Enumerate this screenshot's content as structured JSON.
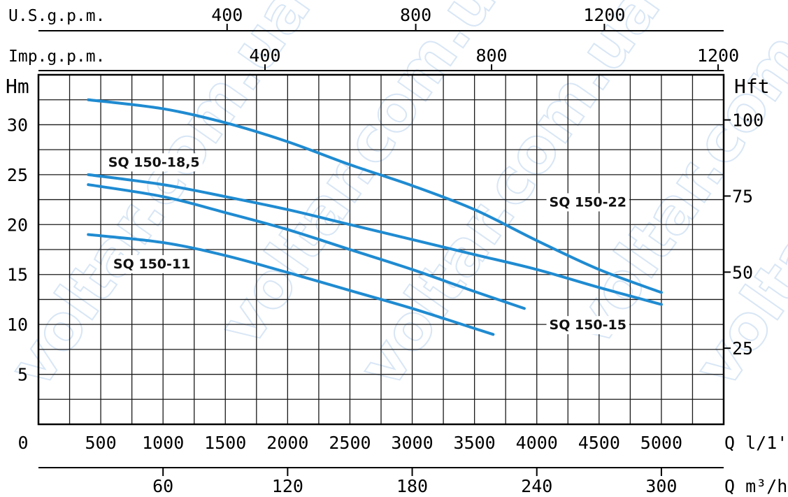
{
  "chart_data": {
    "type": "line",
    "x_unit_main": "Q l/1'",
    "x_unit_m3h": "Q m³/h",
    "x_unit_usgpm": "U.S.g.p.m.",
    "x_unit_impgpm": "Imp.g.p.m.",
    "y_label_left": "Hm",
    "y_label_right": "Hft",
    "xlim": [
      0,
      5500
    ],
    "ylim": [
      0,
      35
    ],
    "grid": true,
    "x_ticks": [
      0,
      500,
      1000,
      1500,
      2000,
      2500,
      3000,
      3500,
      4000,
      4500,
      5000
    ],
    "x_tick_labels": [
      "0",
      "500",
      "1000",
      "1500",
      "2000",
      "2500",
      "3000",
      "3500",
      "4000",
      "4500",
      "5000"
    ],
    "y_ticks": [
      5,
      10,
      15,
      20,
      25,
      30
    ],
    "y_tick_labels": [
      "5",
      "10",
      "15",
      "20",
      "25",
      "30"
    ],
    "hft_ticks": [
      25,
      50,
      75,
      100
    ],
    "hft_tick_labels": [
      "25",
      "50",
      "75",
      "100"
    ],
    "m3h_ticks": [
      60,
      120,
      180,
      240,
      300
    ],
    "m3h_tick_labels": [
      "60",
      "120",
      "180",
      "240",
      "300"
    ],
    "usgpm_ticks": [
      400,
      800,
      1200
    ],
    "usgpm_tick_labels": [
      "400",
      "800",
      "1200"
    ],
    "impgpm_ticks": [
      400,
      800,
      1200
    ],
    "impgpm_tick_labels": [
      "400",
      "800",
      "1200"
    ],
    "series": [
      {
        "name": "SQ 150-22",
        "color": "#1f8bd1",
        "x": [
          400,
          1000,
          1500,
          2000,
          2500,
          3000,
          3500,
          4000,
          4500,
          5000
        ],
        "y": [
          32.5,
          31.6,
          30.2,
          28.3,
          26.0,
          23.9,
          21.5,
          18.4,
          15.5,
          13.2
        ]
      },
      {
        "name": "SQ 150-18,5",
        "color": "#1f8bd1",
        "x": [
          400,
          1000,
          1500,
          2000,
          2500,
          3000,
          3500,
          4000,
          4500,
          5000
        ],
        "y": [
          25.0,
          24.0,
          22.8,
          21.5,
          20.0,
          18.5,
          17.0,
          15.5,
          13.7,
          12.0
        ]
      },
      {
        "name": "SQ 150-15",
        "color": "#1f8bd1",
        "x": [
          400,
          1000,
          1500,
          2000,
          2500,
          3000,
          3500,
          3900
        ],
        "y": [
          24.0,
          22.8,
          21.2,
          19.5,
          17.5,
          15.5,
          13.3,
          11.6
        ]
      },
      {
        "name": "SQ 150-11",
        "color": "#1f8bd1",
        "x": [
          400,
          1000,
          1500,
          2000,
          2500,
          3000,
          3500,
          3650
        ],
        "y": [
          19.0,
          18.2,
          16.9,
          15.2,
          13.4,
          11.6,
          9.6,
          9.0
        ]
      }
    ],
    "labels": [
      {
        "series": "SQ 150-22",
        "text": "SQ 150-22",
        "x": 4100,
        "y": 22.3
      },
      {
        "series": "SQ 150-18,5",
        "text": "SQ 150-18,5",
        "x": 560,
        "y": 26.3
      },
      {
        "series": "SQ 150-15",
        "text": "SQ 150-15",
        "x": 4100,
        "y": 10.0
      },
      {
        "series": "SQ 150-11",
        "text": "SQ 150-11",
        "x": 600,
        "y": 16.1
      }
    ],
    "watermark": "voltar.com.ua"
  }
}
